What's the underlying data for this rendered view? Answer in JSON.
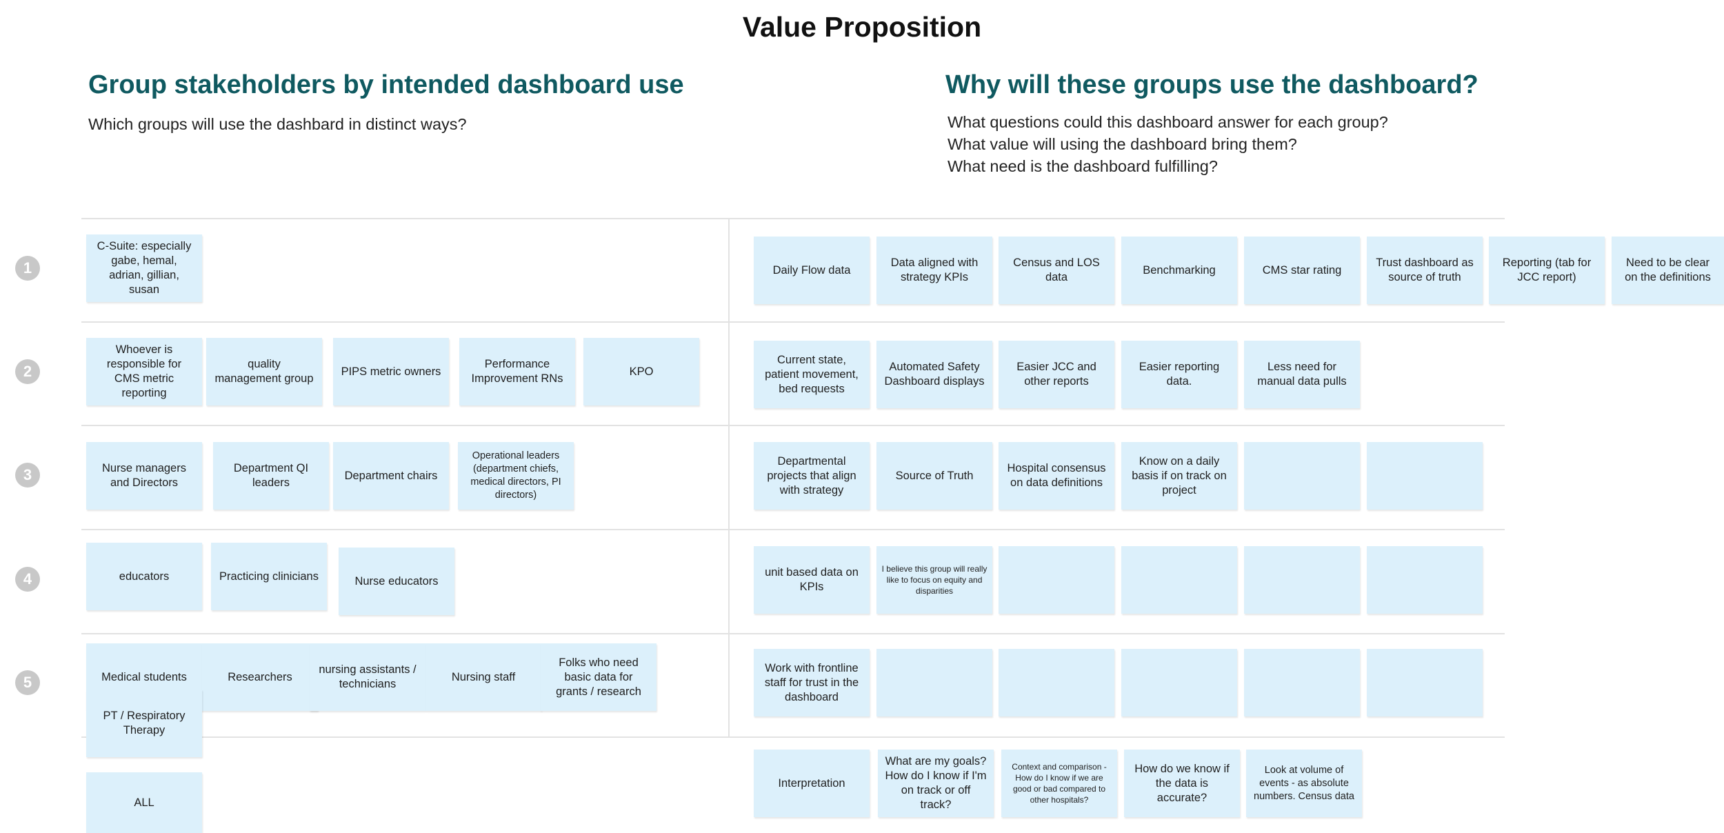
{
  "board": {
    "title": "Value Proposition"
  },
  "left_section": {
    "heading": "Group stakeholders by intended dashboard use",
    "subtitle": "Which groups will use the dashbard in distinct ways?"
  },
  "right_section": {
    "heading": "Why will these groups use the dashboard?",
    "questions": [
      "What questions could this dashboard answer for each group?",
      "What value will using the dashboard bring them?",
      "What need is the dashboard fulfilling?"
    ]
  },
  "row_numbers": [
    "1",
    "2",
    "3",
    "4",
    "5"
  ],
  "stakeholder_notes": {
    "r1": [
      "C-Suite: especially gabe, hemal, adrian, gillian, susan"
    ],
    "r2": [
      "Whoever is responsible for CMS metric reporting",
      "quality management group",
      "PIPS metric owners",
      "Performance Improvement RNs",
      "KPO"
    ],
    "r3": [
      "Nurse managers and Directors",
      "Department QI leaders",
      "Department chairs",
      "Operational leaders (department chiefs, medical directors, PI directors)"
    ],
    "r4": [
      "educators",
      "Practicing clinicians",
      "Nurse educators"
    ],
    "r5": [
      "Medical students",
      "Researchers",
      "nursing assistants / technicians",
      "Nursing staff",
      "Folks who need basic data for grants / research"
    ],
    "extra": [
      "PT / Respiratory Therapy",
      "ALL"
    ]
  },
  "value_notes": {
    "r1": [
      "Daily Flow data",
      "Data aligned with strategy KPIs",
      "Census and LOS data",
      "Benchmarking",
      "CMS star rating",
      "Trust dashboard as source of truth",
      "Reporting (tab for JCC report)",
      "Need to be clear on the definitions"
    ],
    "r2": [
      "Current state, patient movement, bed requests",
      "Automated Safety Dashboard displays",
      "Easier JCC and other reports",
      "Easier reporting data.",
      "Less need for manual data pulls"
    ],
    "r3": [
      "Departmental projects that align with strategy",
      "Source of Truth",
      "Hospital consensus on data definitions",
      "Know on a daily basis if on track on project",
      "",
      ""
    ],
    "r4": [
      "unit based data on KPIs",
      "I believe this group will really like to focus on equity and disparities",
      "",
      "",
      "",
      ""
    ],
    "r5": [
      "Work with frontline staff for trust in the dashboard",
      "",
      "",
      "",
      "",
      ""
    ],
    "all": [
      "Interpretation",
      "What are my goals? How do I know if I'm on track or off track?",
      "Context and comparison - How do I know if we are good or bad compared to other hospitals?",
      "How do we know if the data is accurate?",
      "Look at volume of events  - as absolute numbers. Census data"
    ]
  },
  "colors": {
    "heading": "#0f5960",
    "sticky_note": "#dcf0fb",
    "row_badge": "#c8c8c8",
    "divider": "#e2e2e2"
  }
}
